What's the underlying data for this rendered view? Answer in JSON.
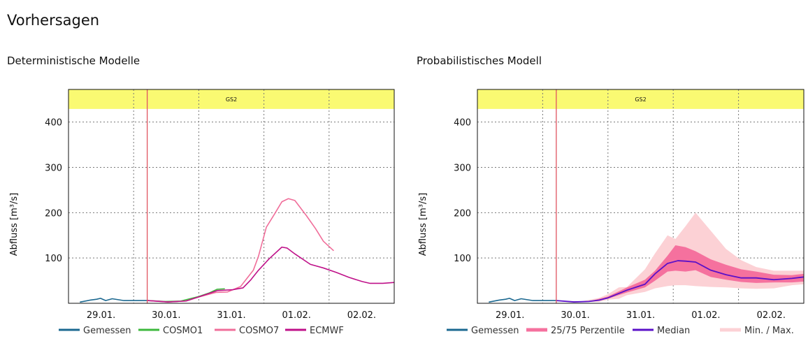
{
  "page_title": "Vorhersagen",
  "colors": {
    "gemessen": "#1b6890",
    "cosmo1": "#3cb83c",
    "cosmo7": "#f06e9a",
    "ecmwf": "#bf1189",
    "median": "#5a10c8",
    "perc": "#f5719e",
    "minmax": "#fcd1d5",
    "forecast_line": "#e05560",
    "band": "#fafa72"
  },
  "chart_data": [
    {
      "type": "line",
      "title": "Deterministische Modelle",
      "band_label": "GS2",
      "ylabel": "Abfluss [m³/s]",
      "xunit": "hours since 29.01. 00:00",
      "xlim": [
        0,
        120
      ],
      "ylim": [
        0,
        472
      ],
      "band_range": [
        429,
        472
      ],
      "forecast_start": 29,
      "yticks": [
        100,
        200,
        300,
        400
      ],
      "xticks": [
        {
          "x": 12,
          "label": "29.01."
        },
        {
          "x": 36,
          "label": "30.01."
        },
        {
          "x": 60,
          "label": "31.01."
        },
        {
          "x": 84,
          "label": "01.02."
        },
        {
          "x": 108,
          "label": "02.02."
        }
      ],
      "grid_x": [
        24,
        48,
        72,
        96
      ],
      "series": [
        {
          "name": "Gemessen",
          "color_key": "gemessen",
          "type": "line",
          "x": [
            4.2,
            8,
            10.4,
            11.8,
            13.7,
            16.1,
            20.4,
            29
          ],
          "y": [
            2.6,
            7,
            9,
            11,
            6,
            10,
            6,
            6
          ]
        },
        {
          "name": "COSMO1",
          "color_key": "cosmo1",
          "type": "line",
          "x": [
            29,
            35.7,
            41.4,
            48,
            51.9,
            54.8,
            57.6
          ],
          "y": [
            6,
            4,
            5,
            15,
            23,
            31,
            32
          ]
        },
        {
          "name": "COSMO7",
          "color_key": "cosmo7",
          "type": "line",
          "x": [
            29,
            36.6,
            43.3,
            48,
            54.3,
            58.6,
            63.4,
            68.1,
            70,
            72.9,
            75.8,
            78.6,
            81,
            83.4,
            87.7,
            91,
            93.9,
            97.7
          ],
          "y": [
            6,
            3,
            5,
            14,
            24,
            25,
            37,
            73,
            104,
            168,
            196,
            224,
            231,
            227,
            193,
            165,
            137,
            116
          ]
        },
        {
          "name": "ECMWF",
          "color_key": "ecmwf",
          "type": "line",
          "x": [
            29,
            36.6,
            43.3,
            48,
            54.8,
            60.5,
            64.3,
            67.2,
            70,
            73.9,
            78.6,
            80.5,
            83.4,
            89.1,
            93.9,
            98.7,
            103.4,
            108.2,
            111.1,
            115.8,
            120
          ],
          "y": [
            6,
            3,
            5,
            14,
            28,
            30,
            34,
            52,
            73,
            98,
            124,
            122,
            109,
            86,
            78,
            68,
            57,
            48,
            44,
            44,
            46
          ]
        }
      ]
    },
    {
      "type": "area",
      "title": "Probabilistisches Modell",
      "band_label": "GS2",
      "ylabel": "Abfluss [m³/s]",
      "xunit": "hours since 29.01. 00:00",
      "xlim": [
        0,
        120
      ],
      "ylim": [
        0,
        472
      ],
      "band_range": [
        429,
        472
      ],
      "forecast_start": 29,
      "yticks": [
        100,
        200,
        300,
        400
      ],
      "xticks": [
        {
          "x": 12,
          "label": "29.01."
        },
        {
          "x": 36,
          "label": "30.01."
        },
        {
          "x": 60,
          "label": "31.01."
        },
        {
          "x": 84,
          "label": "01.02."
        },
        {
          "x": 108,
          "label": "02.02."
        }
      ],
      "grid_x": [
        24,
        48,
        72,
        96
      ],
      "series": [
        {
          "name": "Gemessen",
          "color_key": "gemessen",
          "type": "line",
          "x": [
            4.2,
            8,
            10.4,
            11.8,
            13.7,
            16.1,
            20.4,
            29
          ],
          "y": [
            2.6,
            7,
            9,
            11,
            6,
            10,
            6,
            6
          ]
        },
        {
          "name": "25/75 Perzentile",
          "color_key": "perc",
          "type": "band",
          "x": [
            29,
            41,
            48,
            55,
            61.6,
            65.3,
            69.9,
            72.8,
            76.5,
            80.2,
            85.8,
            91.4,
            97,
            102.5,
            109,
            115.6,
            120
          ],
          "upper": [
            6,
            4,
            15,
            35,
            52,
            72,
            105,
            128,
            124,
            115,
            97,
            85,
            75,
            70,
            63,
            62,
            65
          ],
          "lower": [
            6,
            4,
            10,
            24,
            35,
            50,
            70,
            72,
            70,
            73,
            58,
            52,
            47,
            45,
            46,
            46,
            48
          ]
        },
        {
          "name": "Median",
          "color_key": "median",
          "type": "line",
          "x": [
            29,
            35.5,
            41,
            44.8,
            48,
            55,
            61.6,
            65.3,
            69.9,
            73.7,
            76.5,
            80.2,
            85.8,
            91.4,
            97,
            102.5,
            109,
            115.6,
            120
          ],
          "y": [
            6,
            3,
            4,
            7,
            12,
            29,
            42,
            65,
            88,
            94,
            93,
            91,
            73,
            63,
            56,
            56,
            52,
            55,
            58
          ]
        },
        {
          "name": "Min. / Max.",
          "color_key": "minmax",
          "type": "band",
          "x": [
            29,
            38,
            44.8,
            48,
            52,
            55,
            61.6,
            65.3,
            69.9,
            72.8,
            76.5,
            80.2,
            85.8,
            91.4,
            97,
            102.5,
            109,
            115.6,
            120
          ],
          "upper": [
            6,
            4,
            12,
            20,
            35,
            36,
            75,
            110,
            150,
            142,
            170,
            200,
            160,
            120,
            95,
            80,
            72,
            72,
            72
          ],
          "lower": [
            6,
            3,
            3,
            8,
            10,
            18,
            25,
            33,
            38,
            40,
            40,
            38,
            36,
            35,
            33,
            32,
            33,
            40,
            42
          ]
        }
      ],
      "legend_order": [
        "Gemessen",
        "25/75 Perzentile",
        "Median",
        "Min. / Max."
      ]
    }
  ]
}
